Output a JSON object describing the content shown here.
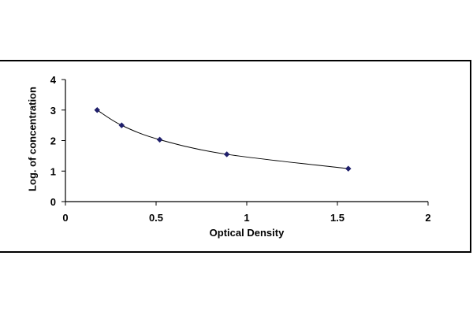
{
  "chart_data": {
    "type": "scatter",
    "xlabel": "Optical Density",
    "ylabel": "Log. of concentration",
    "xlim": [
      0,
      2
    ],
    "ylim": [
      0,
      4
    ],
    "xticks": [
      "0",
      "0.5",
      "1",
      "1.5",
      "2"
    ],
    "yticks": [
      "0",
      "1",
      "2",
      "3",
      "4"
    ],
    "grid": false,
    "series": [
      {
        "points": [
          {
            "x": 0.175,
            "y": 3.0
          },
          {
            "x": 0.31,
            "y": 2.5
          },
          {
            "x": 0.52,
            "y": 2.03
          },
          {
            "x": 0.89,
            "y": 1.55
          },
          {
            "x": 1.56,
            "y": 1.08
          }
        ],
        "marker": "diamond",
        "color": "#1f1f6b",
        "trendline": true
      }
    ]
  }
}
